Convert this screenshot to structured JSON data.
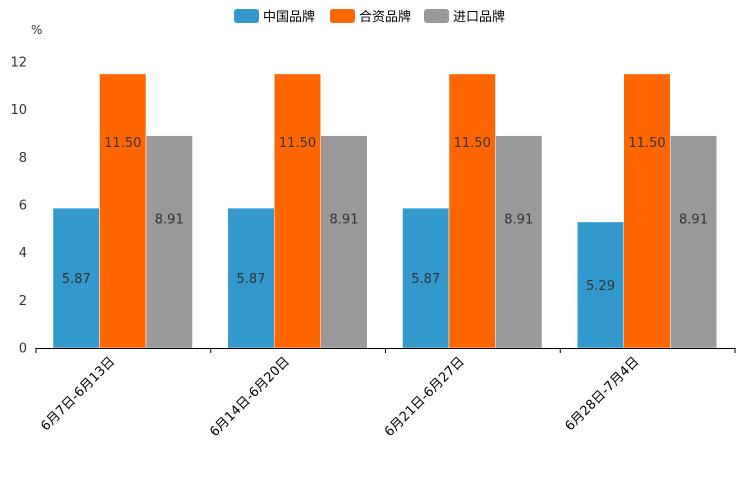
{
  "chart_data": {
    "type": "bar",
    "title": "",
    "xlabel": "",
    "ylabel": "%",
    "ylim": [
      0,
      12
    ],
    "yticks": [
      0,
      2,
      4,
      6,
      8,
      10,
      12
    ],
    "grid": false,
    "legend_position": "top-center",
    "categories": [
      "6月7日-6月13日",
      "6月14日-6月20日",
      "6月21日-6月27日",
      "6月28日-7月4日"
    ],
    "series": [
      {
        "name": "中国品牌",
        "color": "#3399CC",
        "values": [
          5.87,
          5.87,
          5.87,
          5.29
        ],
        "labels": [
          "5.87",
          "5.87",
          "5.87",
          "5.29"
        ]
      },
      {
        "name": "合资品牌",
        "color": "#FF6600",
        "values": [
          11.5,
          11.5,
          11.5,
          11.5
        ],
        "labels": [
          "11.50",
          "11.50",
          "11.50",
          "11.50"
        ]
      },
      {
        "name": "进口品牌",
        "color": "#999999",
        "values": [
          8.91,
          8.91,
          8.91,
          8.91
        ],
        "labels": [
          "8.91",
          "8.91",
          "8.91",
          "8.91"
        ]
      }
    ]
  }
}
